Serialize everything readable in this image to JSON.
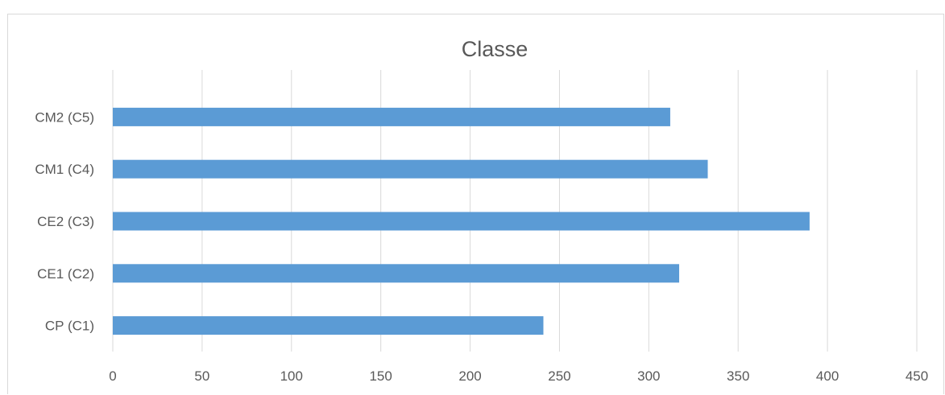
{
  "chart_data": {
    "type": "bar",
    "orientation": "horizontal",
    "title": "Classe",
    "xlabel": "",
    "ylabel": "",
    "categories": [
      "CP (C1)",
      "CE1 (C2)",
      "CE2 (C3)",
      "CM1 (C4)",
      "CM2 (C5)"
    ],
    "values": [
      241,
      317,
      390,
      333,
      312
    ],
    "xlim": [
      0,
      450
    ],
    "xticks": [
      0,
      50,
      100,
      150,
      200,
      250,
      300,
      350,
      400,
      450
    ],
    "grid": true,
    "legend": "none",
    "bar_color": "#5b9bd5"
  }
}
